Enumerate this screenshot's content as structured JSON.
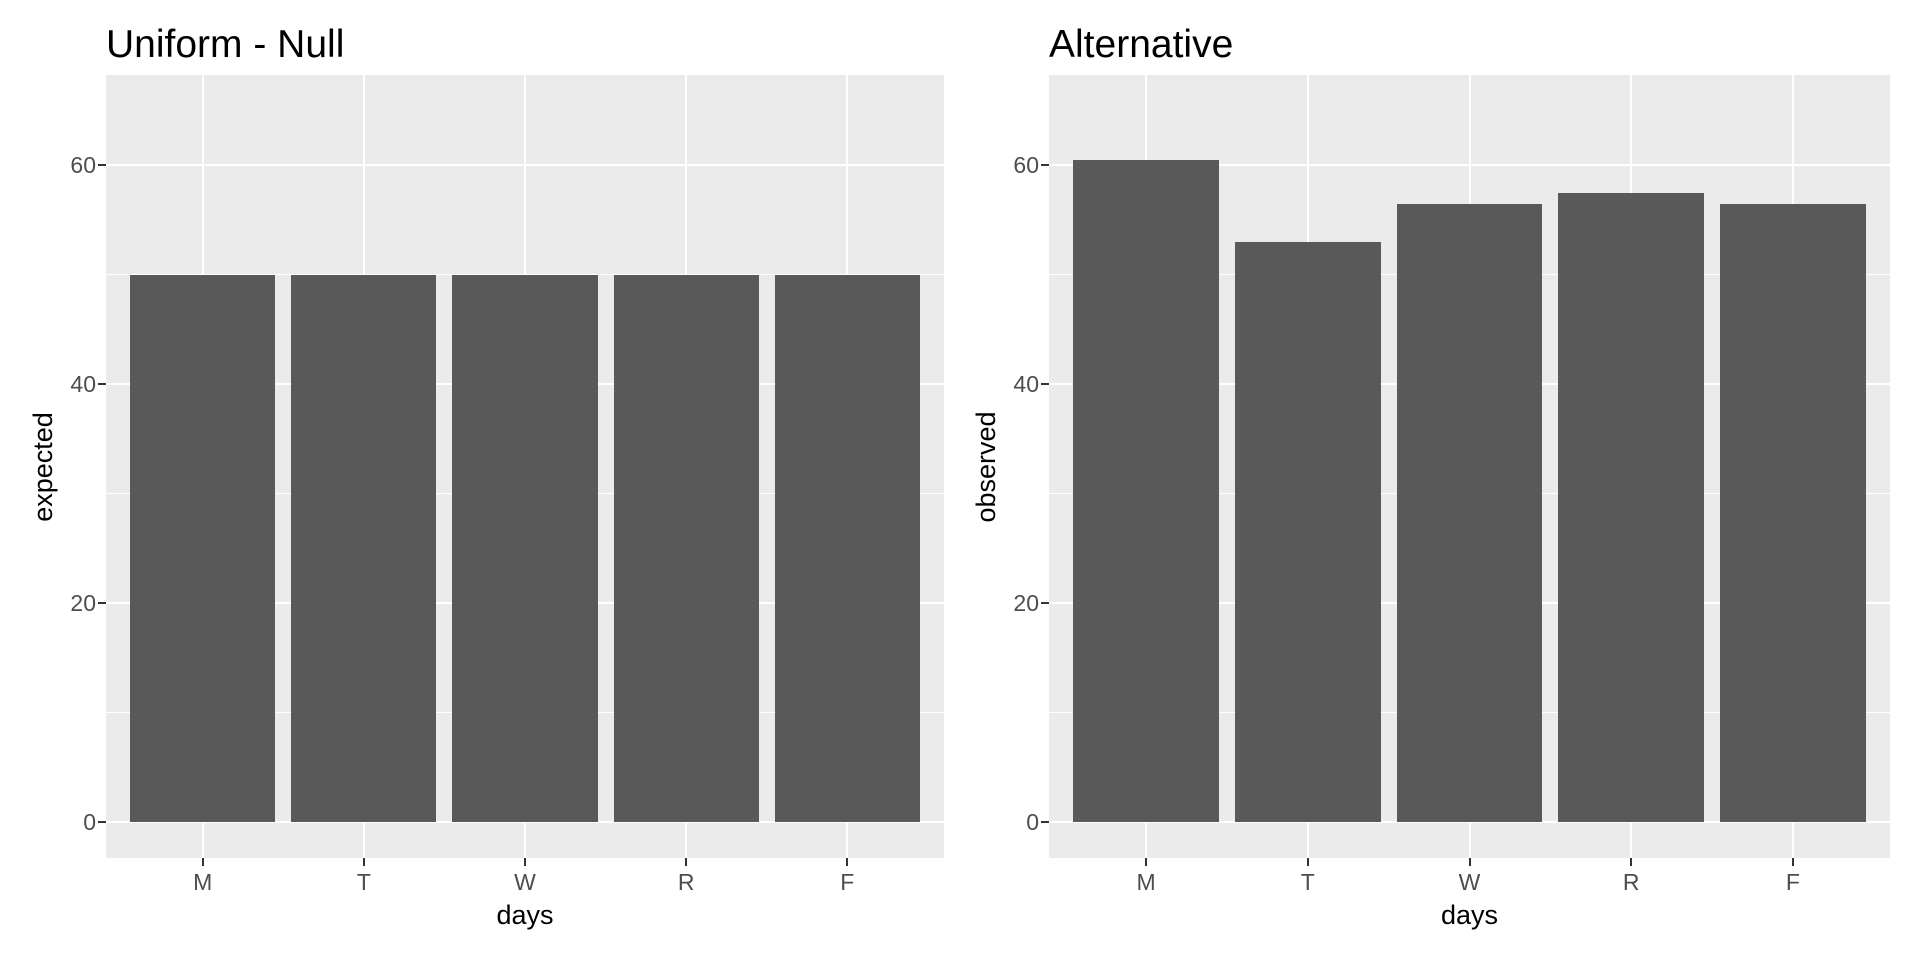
{
  "page": {
    "background": "#FFFFFF",
    "description": "Two side-by-side ggplot2-style bar charts comparing expected (uniform null) vs observed counts by weekday"
  },
  "style": {
    "panel_background": "#EBEBEB",
    "gridline_color": "#FFFFFF",
    "bar_fill": "#595959",
    "tick_mark_color": "#333333",
    "tick_label_color": "#4D4D4D",
    "title_color": "#000000"
  },
  "chart_data": [
    {
      "type": "bar",
      "title": "Uniform - Null",
      "xlabel": "days",
      "ylabel": "expected",
      "categories": [
        "M",
        "T",
        "W",
        "R",
        "F"
      ],
      "values": [
        50,
        50,
        50,
        50,
        50
      ],
      "y_major_ticks": [
        0,
        20,
        40,
        60
      ],
      "y_tick_labels": [
        "0",
        "20",
        "40",
        "60"
      ],
      "y_minor_gridlines": [
        10,
        30,
        50
      ],
      "ylim": [
        0,
        65
      ],
      "grid": "major-and-minor-white-on-gray",
      "legend": "none"
    },
    {
      "type": "bar",
      "title": "Alternative",
      "xlabel": "days",
      "ylabel": "observed",
      "categories": [
        "M",
        "T",
        "W",
        "R",
        "F"
      ],
      "values": [
        60.5,
        53,
        56.5,
        57.5,
        56.5
      ],
      "y_major_ticks": [
        0,
        20,
        40,
        60
      ],
      "y_tick_labels": [
        "0",
        "20",
        "40",
        "60"
      ],
      "y_minor_gridlines": [
        10,
        30,
        50
      ],
      "ylim": [
        0,
        65
      ],
      "grid": "major-and-minor-white-on-gray",
      "legend": "none"
    }
  ]
}
